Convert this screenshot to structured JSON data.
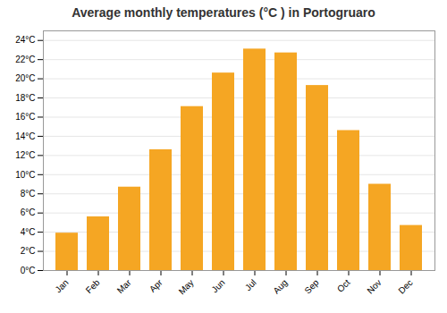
{
  "chart_data": {
    "type": "bar",
    "title": "Average monthly temperatures (°C ) in Portogruaro",
    "categories": [
      "Jan",
      "Feb",
      "Mar",
      "Apr",
      "May",
      "Jun",
      "Jul",
      "Aug",
      "Sep",
      "Oct",
      "Nov",
      "Dec"
    ],
    "values": [
      3.9,
      5.6,
      8.7,
      12.6,
      17.1,
      20.6,
      23.1,
      22.7,
      19.3,
      14.6,
      9.0,
      4.7
    ],
    "color": "#F5A623",
    "ylim": [
      0,
      25
    ],
    "yticks": [
      {
        "value": 0,
        "label": "0°C"
      },
      {
        "value": 2,
        "label": "2°C"
      },
      {
        "value": 4,
        "label": "4°C"
      },
      {
        "value": 6,
        "label": "6°C"
      },
      {
        "value": 8,
        "label": "8°C"
      },
      {
        "value": 10,
        "label": "10°C"
      },
      {
        "value": 12,
        "label": "12°C"
      },
      {
        "value": 14,
        "label": "14°C"
      },
      {
        "value": 16,
        "label": "16°C"
      },
      {
        "value": 18,
        "label": "18°C"
      },
      {
        "value": 20,
        "label": "20°C"
      },
      {
        "value": 22,
        "label": "22°C"
      },
      {
        "value": 24,
        "label": "24°C"
      }
    ],
    "grid": true
  }
}
